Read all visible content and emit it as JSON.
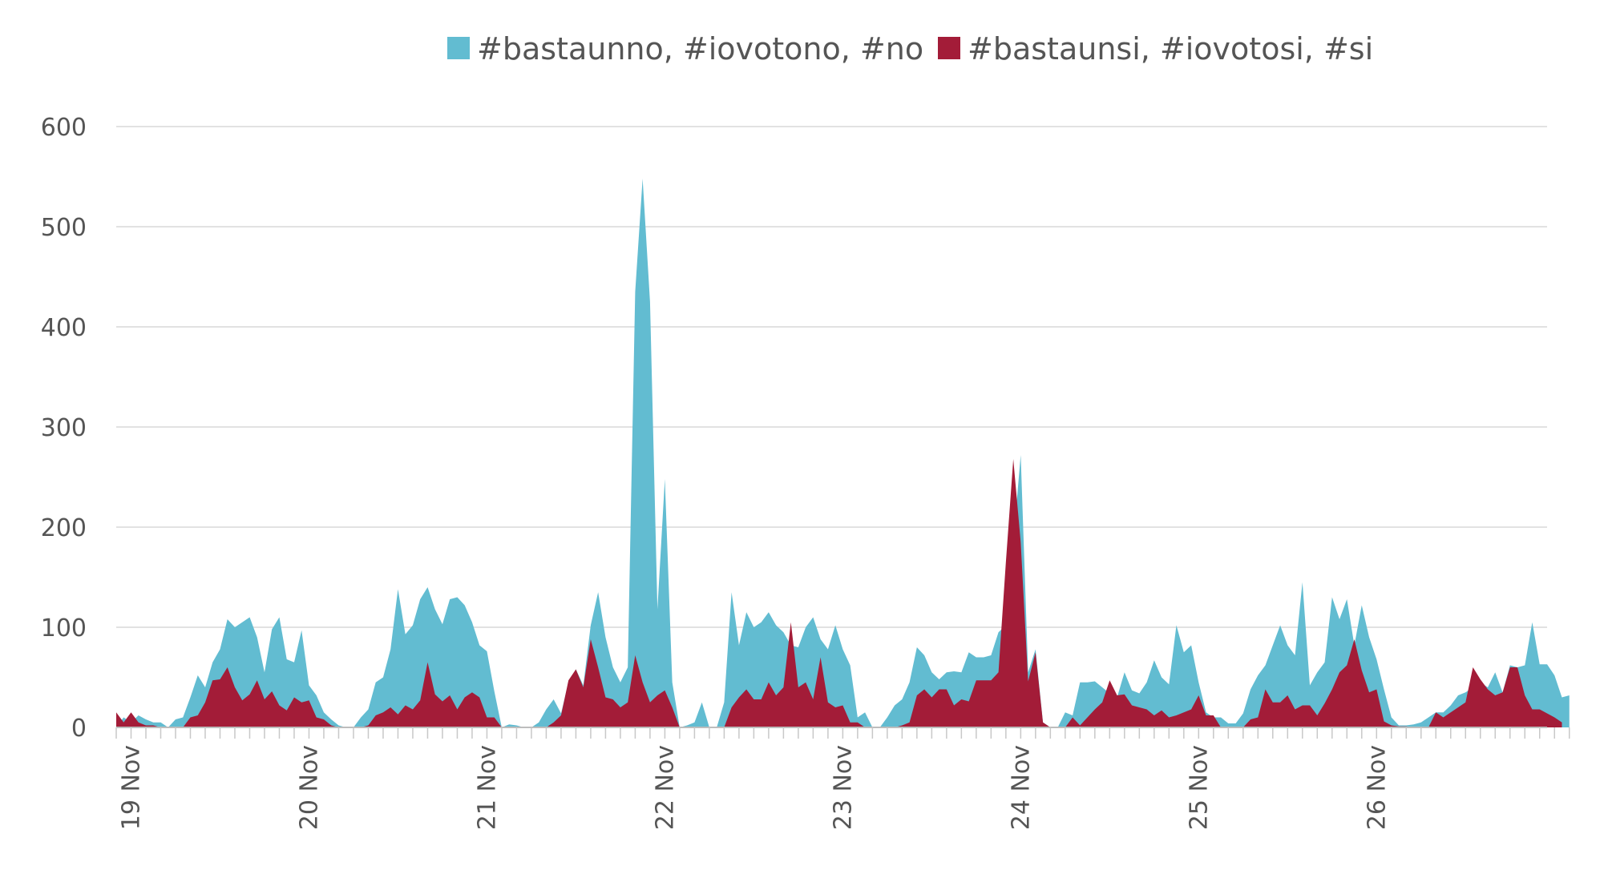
{
  "chart_data": {
    "type": "area",
    "title": "",
    "xlabel": "",
    "ylabel": "",
    "ylim": [
      0,
      600
    ],
    "y_ticks": [
      0,
      100,
      200,
      300,
      400,
      500,
      600
    ],
    "x_range": [
      "2016-11-18T22:00",
      "2016-11-26T23:00"
    ],
    "x_step_hours": 1,
    "x_tick_labels": [
      "19 Nov",
      "20 Nov",
      "21 Nov",
      "22 Nov",
      "23 Nov",
      "24 Nov",
      "25 Nov",
      "26 Nov"
    ],
    "x_tick_dates": [
      "2016-11-19",
      "2016-11-20",
      "2016-11-21",
      "2016-11-22",
      "2016-11-23",
      "2016-11-24",
      "2016-11-25",
      "2016-11-26"
    ],
    "grid": true,
    "legend_position": "top",
    "series": [
      {
        "name": "#bastaunno, #iovotono, #no",
        "color": "#62BCD1",
        "values": [
          0,
          10,
          5,
          12,
          8,
          5,
          5,
          0,
          8,
          10,
          30,
          52,
          40,
          65,
          78,
          108,
          100,
          105,
          110,
          90,
          55,
          98,
          110,
          68,
          65,
          97,
          42,
          32,
          15,
          8,
          2,
          0,
          0,
          10,
          18,
          45,
          50,
          78,
          138,
          93,
          102,
          128,
          140,
          118,
          103,
          128,
          130,
          122,
          105,
          82,
          76,
          36,
          0,
          3,
          2,
          0,
          0,
          5,
          18,
          28,
          14,
          45,
          58,
          42,
          102,
          135,
          90,
          60,
          45,
          60,
          435,
          548,
          425,
          118,
          248,
          45,
          0,
          2,
          5,
          25,
          0,
          0,
          25,
          135,
          82,
          115,
          100,
          105,
          115,
          102,
          95,
          82,
          80,
          100,
          110,
          88,
          78,
          102,
          78,
          62,
          10,
          15,
          0,
          0,
          10,
          22,
          28,
          45,
          80,
          72,
          55,
          48,
          55,
          56,
          55,
          75,
          70,
          70,
          72,
          95,
          102,
          185,
          272,
          55,
          78,
          5,
          0,
          0,
          15,
          12,
          45,
          45,
          46,
          40,
          34,
          30,
          55,
          37,
          34,
          45,
          67,
          50,
          43,
          102,
          75,
          82,
          45,
          15,
          10,
          10,
          4,
          4,
          14,
          38,
          52,
          62,
          82,
          102,
          82,
          72,
          145,
          42,
          55,
          65,
          130,
          108,
          128,
          82,
          122,
          90,
          68,
          38,
          10,
          2,
          2,
          3,
          5,
          10,
          15,
          15,
          22,
          32,
          35,
          40,
          45,
          40,
          55,
          35,
          62,
          60,
          62,
          105,
          63,
          63,
          52,
          30,
          32
        ]
      },
      {
        "name": "#bastaunsi, #iovotosi, #si",
        "color": "#A31C38",
        "values": [
          15,
          5,
          15,
          5,
          2,
          2,
          0,
          0,
          0,
          0,
          10,
          12,
          25,
          47,
          48,
          60,
          40,
          27,
          33,
          47,
          28,
          36,
          22,
          17,
          30,
          25,
          27,
          10,
          8,
          2,
          0,
          0,
          0,
          0,
          2,
          12,
          15,
          20,
          13,
          22,
          18,
          27,
          65,
          33,
          26,
          32,
          18,
          30,
          35,
          30,
          10,
          10,
          0,
          0,
          0,
          0,
          0,
          0,
          0,
          5,
          12,
          47,
          58,
          40,
          88,
          60,
          30,
          28,
          20,
          25,
          72,
          45,
          25,
          32,
          37,
          20,
          0,
          0,
          0,
          0,
          0,
          0,
          0,
          20,
          30,
          38,
          28,
          28,
          45,
          32,
          40,
          105,
          40,
          45,
          28,
          70,
          25,
          20,
          22,
          5,
          5,
          0,
          0,
          0,
          0,
          0,
          2,
          5,
          32,
          38,
          30,
          38,
          38,
          22,
          28,
          26,
          47,
          47,
          47,
          55,
          165,
          268,
          185,
          46,
          75,
          5,
          0,
          0,
          0,
          10,
          2,
          10,
          18,
          25,
          47,
          32,
          33,
          22,
          20,
          18,
          12,
          17,
          10,
          12,
          15,
          18,
          32,
          12,
          12,
          0,
          0,
          0,
          0,
          8,
          10,
          38,
          25,
          25,
          32,
          18,
          22,
          22,
          12,
          24,
          38,
          55,
          62,
          88,
          57,
          35,
          38,
          6,
          2,
          1,
          1,
          0,
          0,
          0,
          15,
          10,
          15,
          20,
          25,
          60,
          48,
          38,
          32,
          35,
          60,
          60,
          32,
          18,
          18,
          14,
          10,
          5
        ]
      }
    ]
  }
}
